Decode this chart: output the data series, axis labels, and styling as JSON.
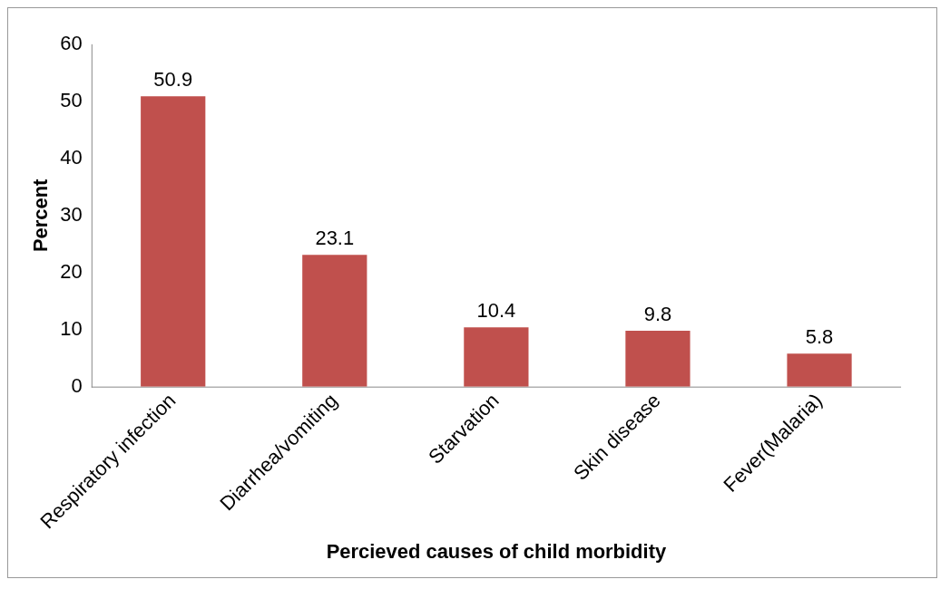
{
  "chart_data": {
    "type": "bar",
    "xlabel": "Percieved causes of child morbidity",
    "ylabel": "Percent",
    "categories": [
      "Respiratory infection",
      "Diarrhea/vomiting",
      "Starvation",
      "Skin disease",
      "Fever(Malaria)"
    ],
    "values": [
      50.9,
      23.1,
      10.4,
      9.8,
      5.8
    ],
    "color": "#c0504d",
    "ylim": [
      0,
      60
    ],
    "yticks": [
      0,
      10,
      20,
      30,
      40,
      50,
      60
    ],
    "grid": false,
    "legend": false,
    "data_labels": true
  }
}
